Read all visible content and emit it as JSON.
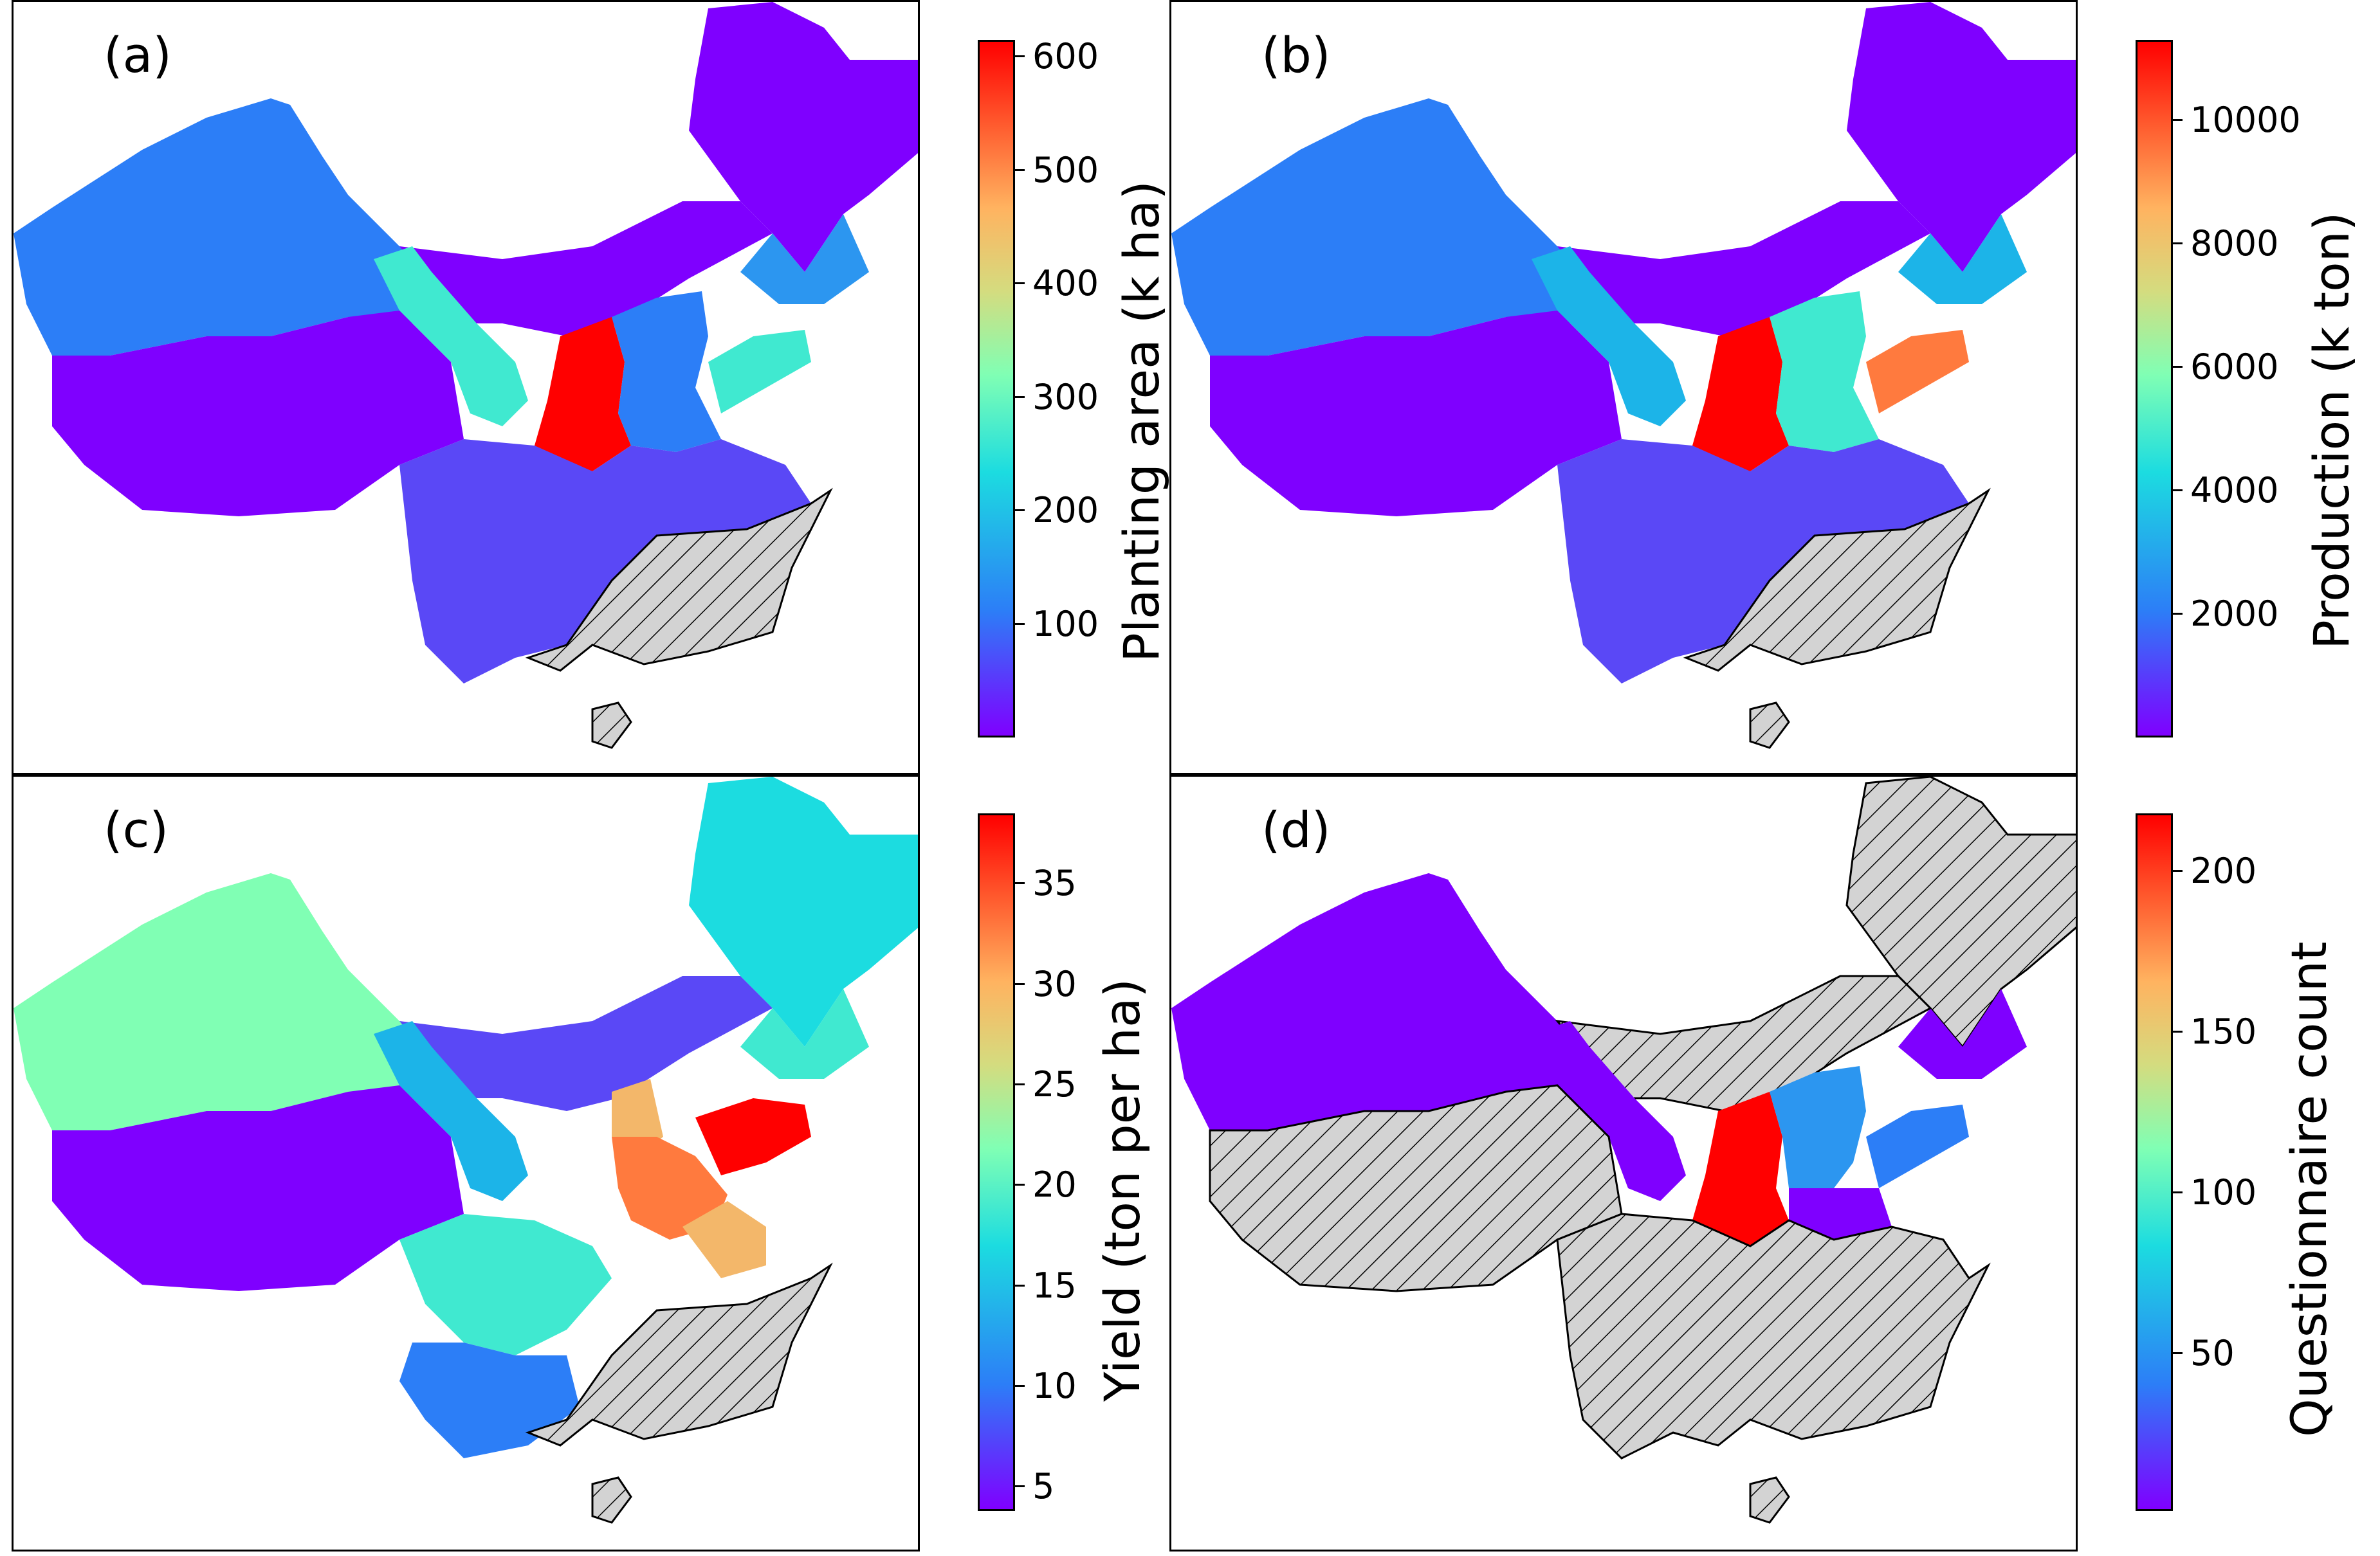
{
  "panels": [
    {
      "label": "(a)",
      "colorbar_label": "Planting area (k ha)",
      "ticks": [
        "100",
        "200",
        "300",
        "400",
        "500",
        "600"
      ],
      "range": [
        0,
        615
      ]
    },
    {
      "label": "(b)",
      "colorbar_label": "Production (k ton)",
      "ticks": [
        "2000",
        "4000",
        "6000",
        "8000",
        "10000"
      ],
      "range": [
        0,
        11300
      ]
    },
    {
      "label": "(c)",
      "colorbar_label": "Yield (ton per ha)",
      "ticks": [
        "5",
        "10",
        "15",
        "20",
        "25",
        "30",
        "35"
      ],
      "range": [
        3.8,
        38.5
      ]
    },
    {
      "label": "(d)",
      "colorbar_label": "Questionnaire count",
      "ticks": [
        "50",
        "100",
        "150",
        "200"
      ],
      "range": [
        1,
        218
      ]
    }
  ],
  "colors": {
    "violet": "#7f00ff",
    "blue_violet": "#5a48f6",
    "blue": "#2c7ef7",
    "cyan": "#1cdce0",
    "aquamarine": "#40e9d0",
    "mint": "#80ffb4",
    "tan": "#f3b76a",
    "orange": "#ff7a3e",
    "red": "#ff0000",
    "hatch_fill": "#d3d3d3"
  }
}
